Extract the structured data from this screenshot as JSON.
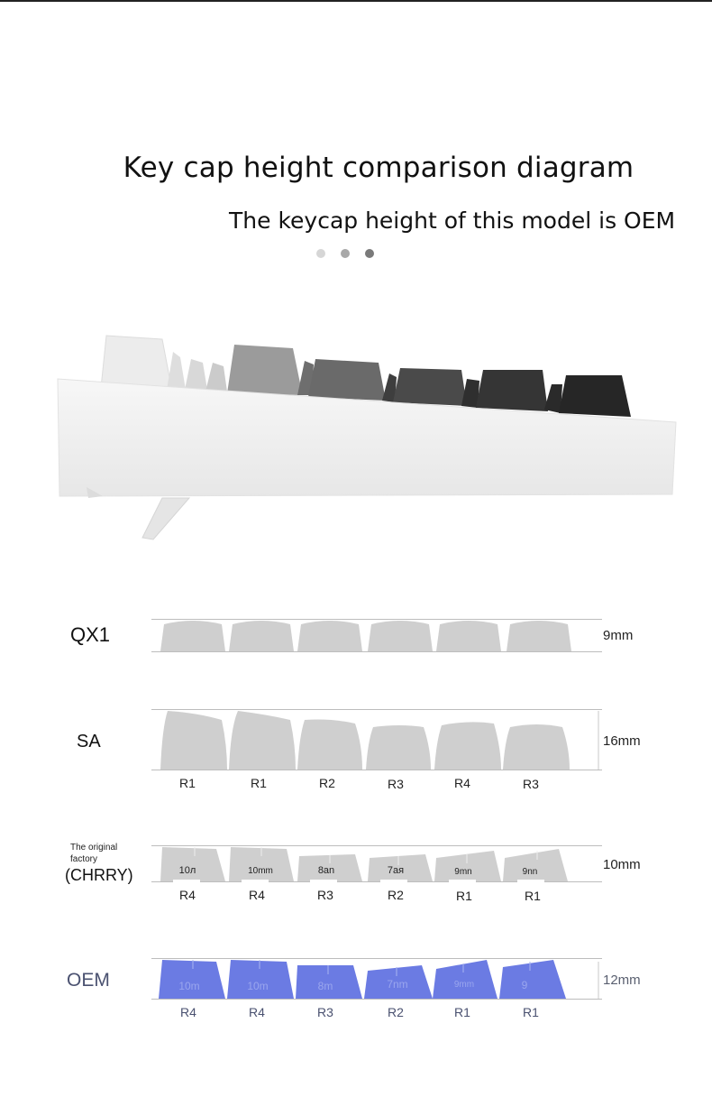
{
  "header": {
    "title": "Key cap height comparison diagram",
    "subtitle": "The keycap height of this model is OEM",
    "dots": [
      "#d6d6d6",
      "#a8a8a8",
      "#7a7a7a"
    ]
  },
  "rows": {
    "qx1": {
      "label": "QX1",
      "height": "9mm"
    },
    "sa": {
      "label": "SA",
      "height": "16mm",
      "rows": [
        "R1",
        "R1",
        "R2",
        "R3",
        "R4",
        "R3"
      ]
    },
    "cherry": {
      "note_line1": "The original",
      "note_line2": "factory",
      "label": "(CHRRY)",
      "height": "10mm",
      "rows": [
        "R4",
        "R4",
        "R3",
        "R2",
        "R1",
        "R1"
      ],
      "key_marks": [
        "10л",
        "10mm",
        "8an",
        "7ая",
        "9mn",
        "9nn"
      ]
    },
    "oem": {
      "label": "OEM",
      "height": "12mm",
      "rows": [
        "R4",
        "R4",
        "R3",
        "R2",
        "R1",
        "R1"
      ],
      "key_marks": [
        "10m",
        "10m",
        "8m",
        "7nm",
        "9mm",
        "9"
      ]
    }
  },
  "colors": {
    "keycap_grey": "#cfcfcf",
    "oem_blue": "#6b7be3",
    "guide": "#bdbdbd"
  }
}
